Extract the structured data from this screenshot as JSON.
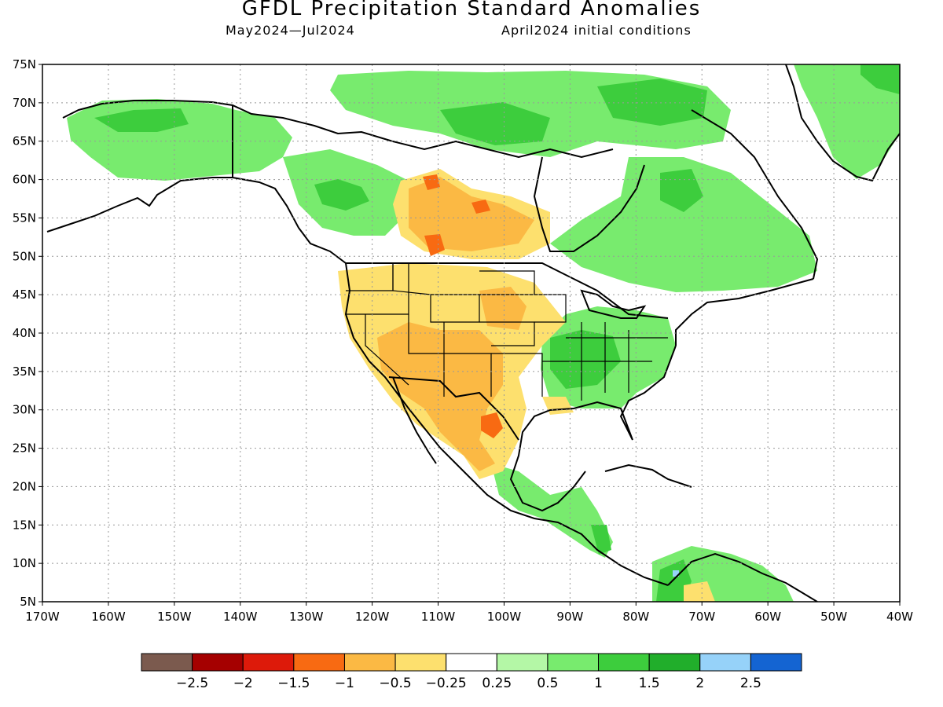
{
  "header": {
    "title": "GFDL Precipitation Standard Anomalies",
    "period": "May2024—Jul2024",
    "initial_conditions": "April2024 initial conditions"
  },
  "map": {
    "lat_labels": [
      "75N",
      "70N",
      "65N",
      "60N",
      "55N",
      "50N",
      "45N",
      "40N",
      "35N",
      "30N",
      "25N",
      "20N",
      "15N",
      "10N",
      "5N"
    ],
    "lon_labels": [
      "170W",
      "160W",
      "150W",
      "140W",
      "130W",
      "120W",
      "110W",
      "100W",
      "90W",
      "80W",
      "70W",
      "60W",
      "50W",
      "40W"
    ],
    "gridlines": true,
    "colors": {
      "land_outline": "#000000",
      "grid": "#999999"
    }
  },
  "legend": {
    "colors": [
      "#7b5a4e",
      "#a50000",
      "#dd1a0a",
      "#f86a12",
      "#fbb944",
      "#fde06e",
      "#ffffff",
      "#b4f7a6",
      "#78eb6e",
      "#3dcd3d",
      "#21ae2b",
      "#96d2f9",
      "#1464d2"
    ],
    "labels": [
      "−2.5",
      "−2",
      "−1.5",
      "−1",
      "−0.5",
      "−0.25",
      "0.25",
      "0.5",
      "1",
      "1.5",
      "2",
      "2.5"
    ]
  }
}
